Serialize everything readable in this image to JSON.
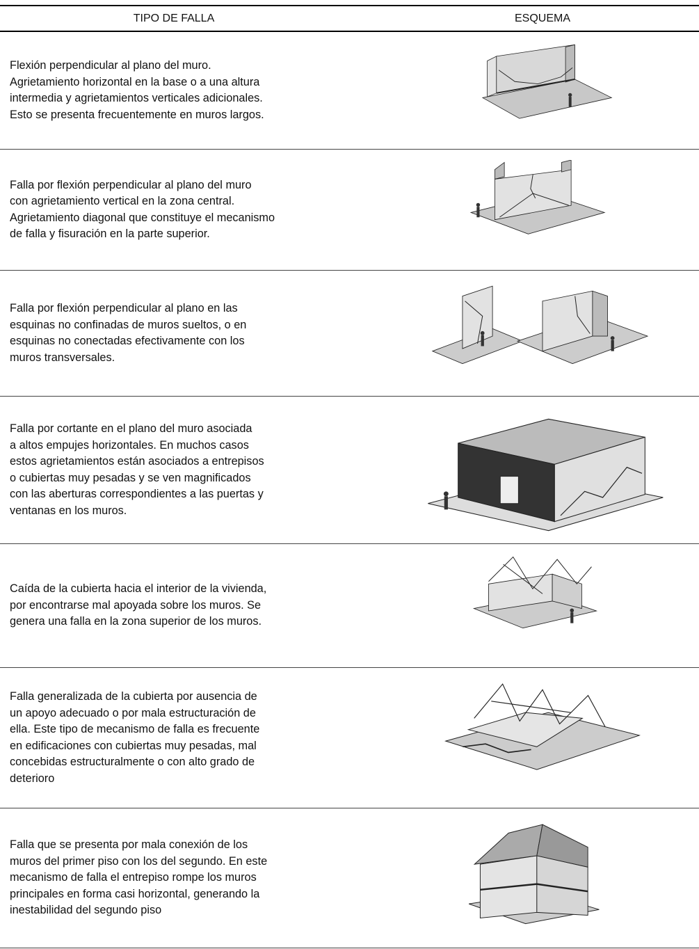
{
  "table": {
    "headers": [
      "TIPO DE FALLA",
      "ESQUEMA"
    ],
    "rows": [
      {
        "description": [
          "Flexión perpendicular al plano del muro.",
          "Agrietamiento horizontal en la base o a una altura",
          "intermedia y agrietamientos verticales adicionales.",
          "Esto se presenta frecuentemente en muros largos."
        ]
      },
      {
        "description": [
          "Falla por flexión perpendicular al plano del muro",
          "con agrietamiento vertical en la zona central.",
          "Agrietamiento diagonal que constituye el mecanismo",
          "de falla y fisuración en la parte superior."
        ]
      },
      {
        "description": [
          "Falla por flexión perpendicular al plano en las",
          "esquinas no confinadas de muros sueltos, o en",
          "esquinas no conectadas efectivamente con los",
          "muros transversales."
        ]
      },
      {
        "description": [
          "Falla por cortante en el plano del muro asociada",
          "a altos empujes horizontales. En muchos casos",
          "estos agrietamientos están asociados a entrepisos",
          "o cubiertas muy pesadas y se ven magnificados",
          "con las aberturas correspondientes a las puertas y",
          "ventanas en los muros."
        ]
      },
      {
        "description": [
          "Caída de la cubierta hacia el interior de la vivienda,",
          "por encontrarse mal apoyada sobre los muros. Se",
          "genera una falla en la zona superior de los muros."
        ]
      },
      {
        "description": [
          "Falla generalizada de la cubierta por ausencia de",
          "un apoyo adecuado o por mala estructuración de",
          "ella. Este tipo de mecanismo de falla es frecuente",
          "en edificaciones con cubiertas muy pesadas, mal",
          "concebidas estructuralmente o con alto grado de",
          "deterioro"
        ]
      },
      {
        "description": [
          "Falla que se presenta por mala conexión de los",
          "muros del primer piso con los del segundo. En este",
          "mecanismo de falla el entrepiso rompe los muros",
          "principales en forma casi horizontal, generando la",
          "inestabilidad del segundo piso"
        ]
      }
    ]
  }
}
